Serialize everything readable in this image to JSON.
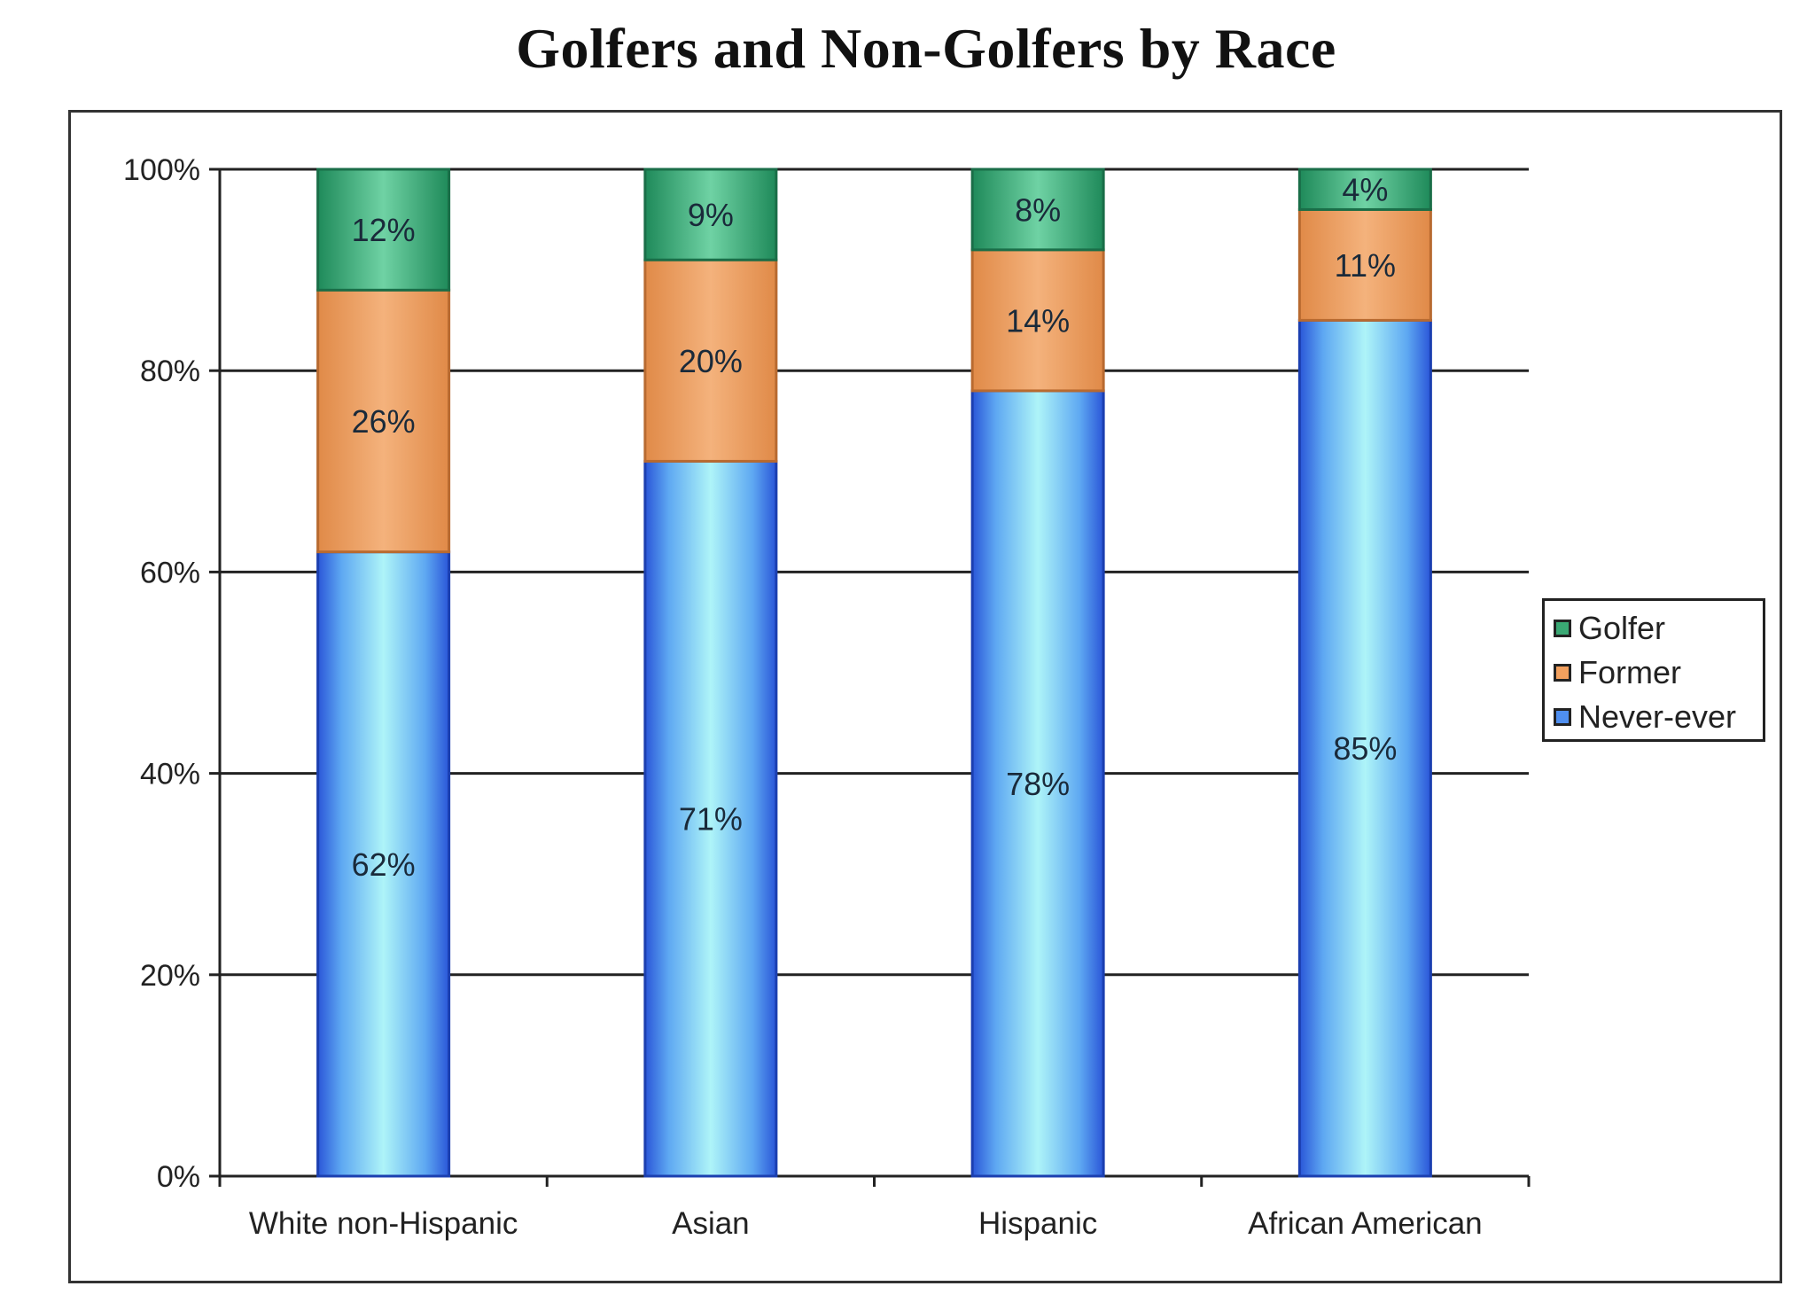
{
  "chart_data": {
    "type": "bar",
    "stacked": true,
    "title": "Golfers and Non-Golfers by Race",
    "categories": [
      "White non-Hispanic",
      "Asian",
      "Hispanic",
      "African American"
    ],
    "series": [
      {
        "name": "Never-ever",
        "values": [
          62,
          71,
          78,
          85
        ],
        "labels": [
          "62%",
          "71%",
          "78%",
          "85%"
        ],
        "color": "#4f8ff0"
      },
      {
        "name": "Former",
        "values": [
          26,
          20,
          14,
          11
        ],
        "labels": [
          "26%",
          "20%",
          "14%",
          "11%"
        ],
        "color": "#f2a05e"
      },
      {
        "name": "Golfer",
        "values": [
          12,
          9,
          8,
          4
        ],
        "labels": [
          "12%",
          "9%",
          "8%",
          "4%"
        ],
        "color": "#3aa874"
      }
    ],
    "legend_order": [
      "Golfer",
      "Former",
      "Never-ever"
    ],
    "y_ticks": [
      "0%",
      "20%",
      "40%",
      "60%",
      "80%",
      "100%"
    ],
    "ylim": [
      0,
      100
    ],
    "grid": true,
    "legend_position": "right"
  }
}
